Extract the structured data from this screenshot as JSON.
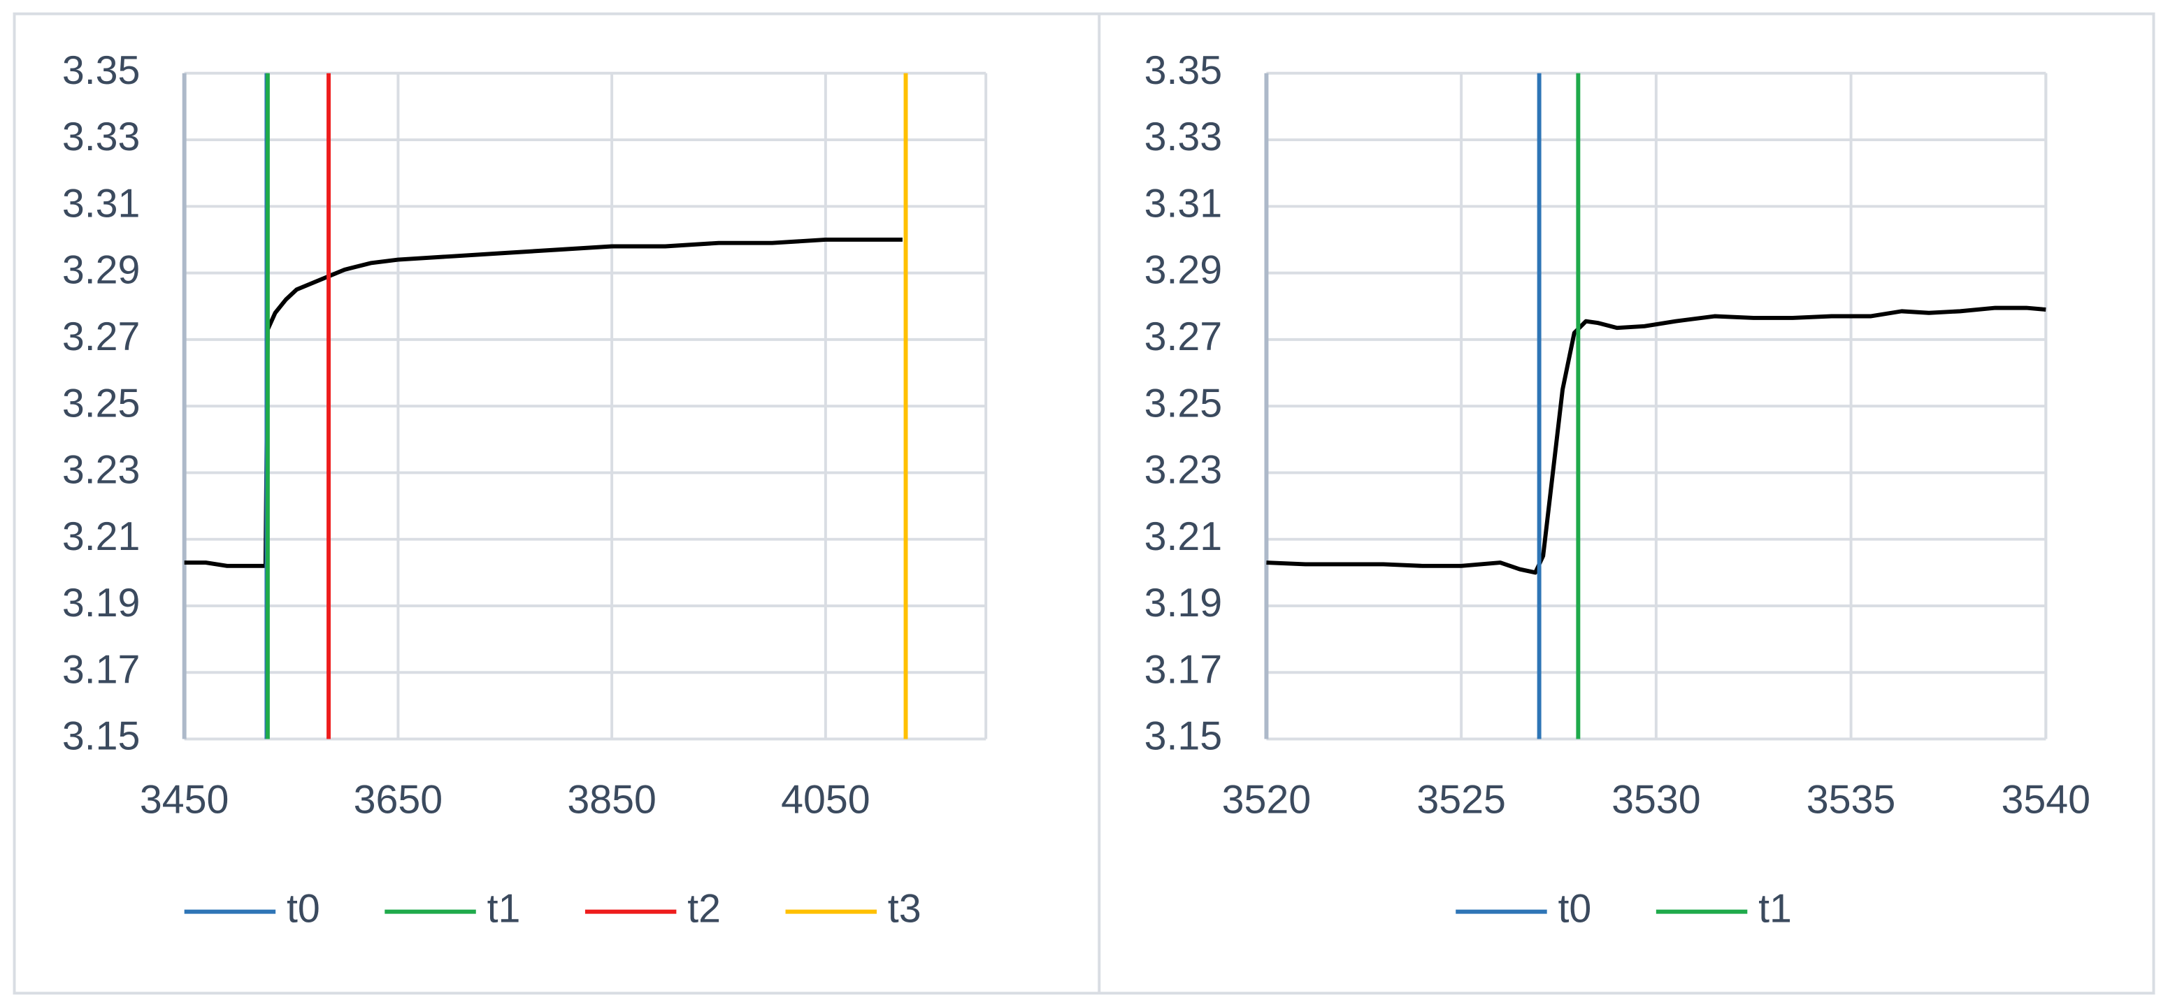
{
  "chart_data": [
    {
      "type": "line",
      "x": [
        3450,
        3470,
        3490,
        3510,
        3526,
        3528,
        3535,
        3545,
        3555,
        3570,
        3585,
        3600,
        3625,
        3650,
        3700,
        3750,
        3800,
        3850,
        3900,
        3950,
        4000,
        4050,
        4100,
        4122
      ],
      "values": [
        3.203,
        3.203,
        3.202,
        3.202,
        3.202,
        3.273,
        3.278,
        3.282,
        3.285,
        3.287,
        3.289,
        3.291,
        3.293,
        3.294,
        3.295,
        3.296,
        3.297,
        3.298,
        3.298,
        3.299,
        3.299,
        3.3,
        3.3,
        3.3
      ],
      "color": "#000000",
      "vlines": [
        {
          "name": "t0",
          "color": "#2e75b6",
          "x": 3527
        },
        {
          "name": "t1",
          "color": "#1faa4b",
          "x": 3528
        },
        {
          "name": "t2",
          "color": "#ee1c1c",
          "x": 3585
        },
        {
          "name": "t3",
          "color": "#ffc000",
          "x": 4125
        }
      ],
      "xlim": [
        3450,
        4200
      ],
      "xticks": [
        3450,
        3650,
        3850,
        4050
      ],
      "ylim": [
        3.15,
        3.35
      ],
      "yticks": [
        3.15,
        3.17,
        3.19,
        3.21,
        3.23,
        3.25,
        3.27,
        3.29,
        3.31,
        3.33,
        3.35
      ],
      "grid": true,
      "legend": "bottom"
    },
    {
      "type": "line",
      "x": [
        3520,
        3521,
        3522,
        3523,
        3524,
        3525,
        3526,
        3526.5,
        3526.9,
        3527.1,
        3527.3,
        3527.6,
        3527.9,
        3528.2,
        3528.5,
        3529,
        3529.7,
        3530.5,
        3531.5,
        3532.5,
        3533.5,
        3534.5,
        3535.5,
        3536.3,
        3537,
        3537.8,
        3538.7,
        3539.5,
        3540
      ],
      "values": [
        3.203,
        3.2025,
        3.2025,
        3.2025,
        3.202,
        3.202,
        3.203,
        3.201,
        3.2,
        3.205,
        3.225,
        3.255,
        3.272,
        3.2755,
        3.275,
        3.2735,
        3.274,
        3.2755,
        3.277,
        3.2765,
        3.2765,
        3.277,
        3.277,
        3.2785,
        3.278,
        3.2785,
        3.2795,
        3.2795,
        3.279
      ],
      "color": "#000000",
      "vlines": [
        {
          "name": "t0",
          "color": "#2e75b6",
          "x": 3527
        },
        {
          "name": "t1",
          "color": "#1faa4b",
          "x": 3528
        }
      ],
      "xlim": [
        3520,
        3540
      ],
      "xticks": [
        3520,
        3525,
        3530,
        3535,
        3540
      ],
      "ylim": [
        3.15,
        3.35
      ],
      "yticks": [
        3.15,
        3.17,
        3.19,
        3.21,
        3.23,
        3.25,
        3.27,
        3.29,
        3.31,
        3.33,
        3.35
      ],
      "grid": true,
      "legend": "bottom"
    }
  ]
}
